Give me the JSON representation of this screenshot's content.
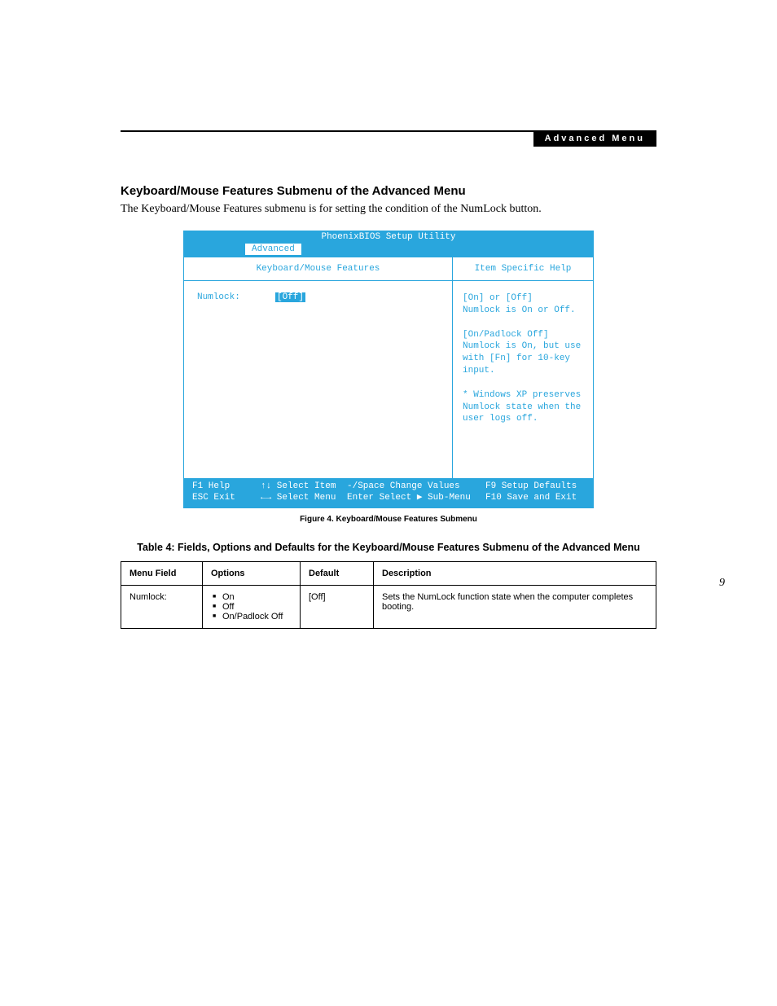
{
  "header_bar": "Advanced Menu",
  "section_title": "Keyboard/Mouse Features Submenu of the Advanced Menu",
  "intro_text": "The Keyboard/Mouse Features submenu is for setting the condition of the NumLock button.",
  "bios": {
    "title": "PhoenixBIOS Setup Utility",
    "tab_active": "Advanced",
    "left_header": "Keyboard/Mouse Features",
    "right_header": "Item Specific Help",
    "field_label": "Numlock:",
    "field_value": "[Off]",
    "help_lines": [
      "[On] or [Off]",
      "Numlock is On or Off.",
      "",
      "[On/Padlock Off]",
      "Numlock is On, but use",
      "with [Fn] for 10-key",
      "input.",
      "",
      "* Windows XP preserves",
      "Numlock state when the",
      "user logs off."
    ],
    "footer": {
      "r1c1": "F1  Help",
      "r1c2": "↑↓ Select Item",
      "r1c3": "-/Space Change Values",
      "r1c4": "F9  Setup Defaults",
      "r2c1": "ESC Exit",
      "r2c2": "←→ Select Menu",
      "r2c3": "Enter Select ▶ Sub-Menu",
      "r2c4": "F10 Save and Exit"
    }
  },
  "figure_caption": "Figure 4.  Keyboard/Mouse Features Submenu",
  "table_title": "Table 4: Fields, Options and Defaults for the Keyboard/Mouse Features Submenu of the Advanced Menu",
  "table": {
    "headers": [
      "Menu Field",
      "Options",
      "Default",
      "Description"
    ],
    "row": {
      "menu_field": "Numlock:",
      "options": [
        "On",
        "Off",
        "On/Padlock Off"
      ],
      "default": "[Off]",
      "description": "Sets the NumLock function state when the computer completes booting."
    }
  },
  "page_number": "9",
  "colors": {
    "bios_blue": "#29a6dd",
    "black": "#000000",
    "white": "#ffffff"
  }
}
